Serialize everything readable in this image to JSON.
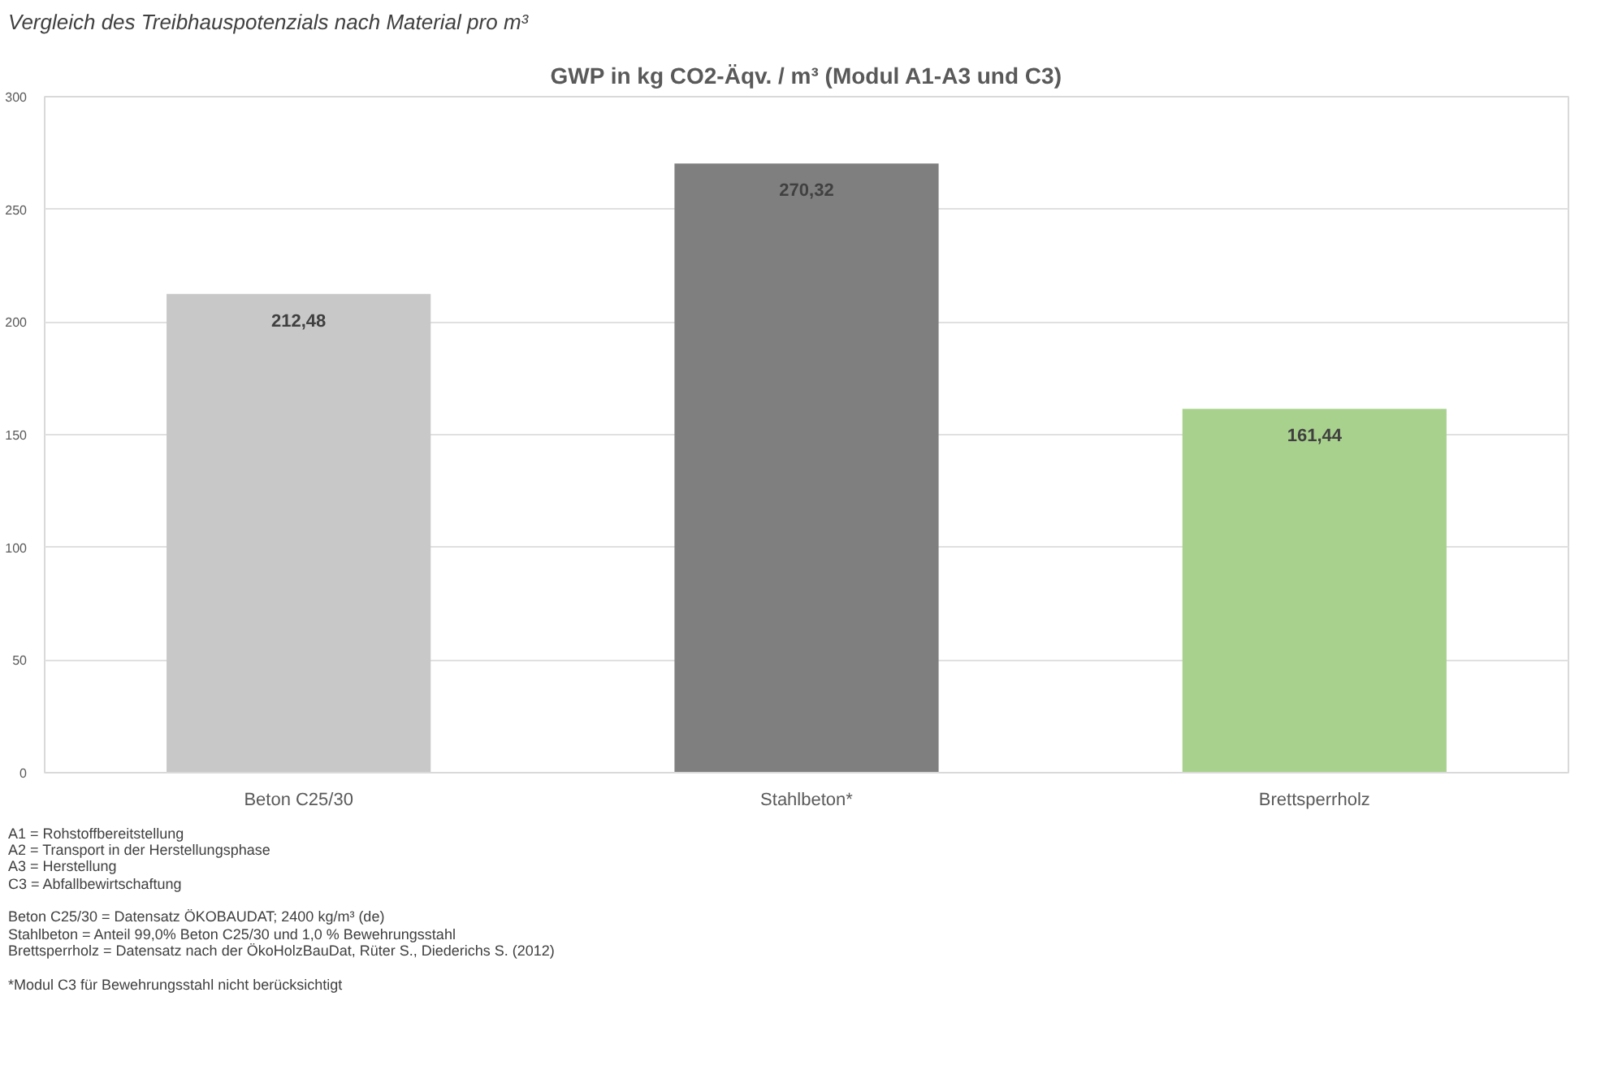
{
  "chart_data": {
    "type": "bar",
    "title": "GWP in kg CO2-Äqv. / m³ (Modul A1-A3 und C3)",
    "subtitle": "Vergleich des Treibhauspotenzials nach Material pro m³",
    "categories": [
      "Beton C25/30",
      "Stahlbeton*",
      "Brettsperrholz"
    ],
    "values": [
      212.48,
      270.32,
      161.44
    ],
    "colors": [
      "#c8c8c8",
      "#7f7f7f",
      "#a9d18e"
    ],
    "value_labels": [
      "212,48",
      "270,32",
      "161,44"
    ],
    "ylim": [
      0,
      300
    ],
    "yticks": [
      0,
      50,
      100,
      150,
      200,
      250,
      300
    ],
    "grid": "y",
    "annotations": [
      "A1 = Rohstoffbereitstellung",
      "A2 = Transport in der Herstellungsphase",
      "A3 = Herstellung",
      "C3 = Abfallbewirtschaftung",
      "Beton C25/30 = Datensatz ÖKOBAUDAT; 2400 kg/m³ (de)",
      "Stahlbeton = Anteil 99,0% Beton C25/30 und 1,0 % Bewehrungsstahl",
      "Brettsperrholz = Datensatz nach der ÖkoHolzBauDat, Rüter S., Diederichs S. (2012)",
      "*Modul C3 für Bewehrungsstahl nicht berücksichtigt"
    ]
  }
}
